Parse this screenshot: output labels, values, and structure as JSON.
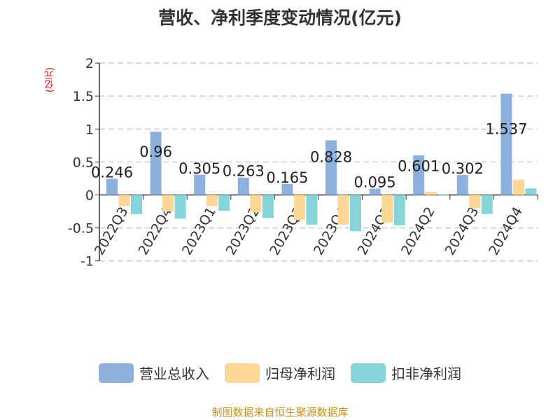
{
  "chart_data": {
    "type": "bar",
    "title": "营收、净利季度变动情况(亿元)",
    "ylabel": "(亿元)",
    "ylim": [
      -1,
      2
    ],
    "yticks": [
      "2",
      "1.5",
      "1",
      "0.5",
      "0",
      "-0.5",
      "-1"
    ],
    "grid": true,
    "legend_position": "bottom",
    "categories": [
      "2022Q3",
      "2022Q4",
      "2023Q1",
      "2023Q2",
      "2023Q3",
      "2023Q4",
      "2024Q1",
      "2024Q2",
      "2024Q3",
      "2024Q4"
    ],
    "series": [
      {
        "name": "营业总收入",
        "color": "#8eb0dc",
        "values": [
          0.246,
          0.96,
          0.305,
          0.263,
          0.165,
          0.828,
          0.095,
          0.601,
          0.302,
          1.537
        ],
        "labels": [
          "0.246",
          "0.96",
          "0.305",
          "0.263",
          "0.165",
          "0.828",
          "0.095",
          "0.601",
          "0.302",
          "1.537"
        ]
      },
      {
        "name": "归母净利润",
        "color": "#fed797",
        "values": [
          -0.17,
          -0.25,
          -0.17,
          -0.26,
          -0.38,
          -0.45,
          -0.42,
          0.05,
          -0.2,
          0.23
        ]
      },
      {
        "name": "扣非净利润",
        "color": "#86d4d8",
        "values": [
          -0.29,
          -0.36,
          -0.24,
          -0.35,
          -0.45,
          -0.55,
          -0.46,
          0.005,
          -0.29,
          0.1
        ]
      }
    ]
  },
  "source": "制图数据来自恒生聚源数据库"
}
